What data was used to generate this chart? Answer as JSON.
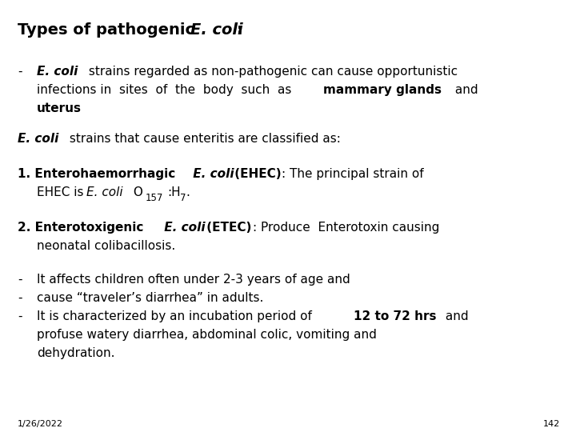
{
  "bg_color": "#ffffff",
  "text_color": "#000000",
  "page_number": "142",
  "date": "1/26/2022",
  "figsize": [
    7.2,
    5.4
  ],
  "dpi": 100,
  "fs_title": 14,
  "fs_body": 11,
  "fs_small": 8.5,
  "fs_footer": 8
}
